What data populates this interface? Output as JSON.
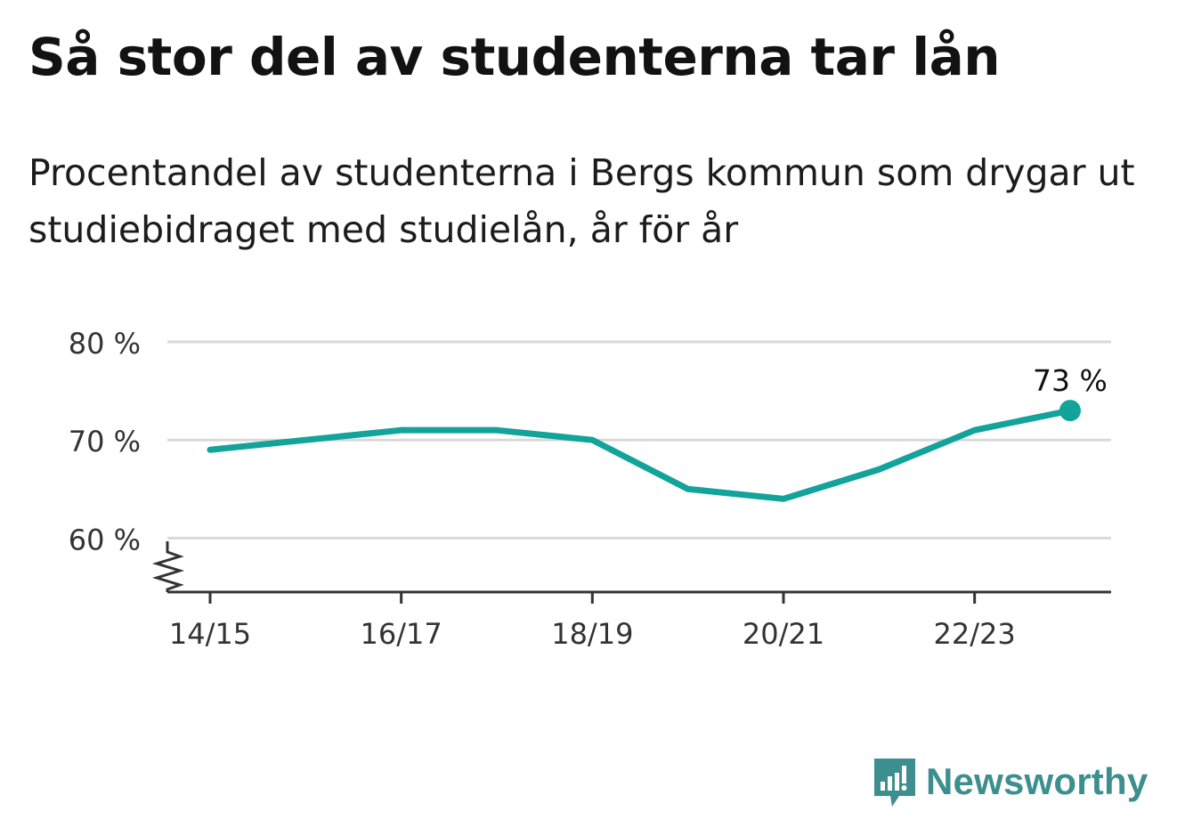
{
  "title": "Så stor del av studenterna tar lån",
  "subtitle": "Procentandel av studenterna i Bergs kommun som drygar ut studiebidraget med studielån, år för år",
  "brand": {
    "name": "Newsworthy",
    "color": "#3d8f8f"
  },
  "chart_data": {
    "type": "line",
    "categories": [
      "14/15",
      "15/16",
      "16/17",
      "17/18",
      "18/19",
      "19/20",
      "20/21",
      "21/22",
      "22/23",
      "23/24"
    ],
    "x_tick_labels": [
      "14/15",
      "16/17",
      "18/19",
      "20/21",
      "22/23"
    ],
    "series": [
      {
        "values": [
          69,
          70,
          71,
          71,
          70,
          65,
          64,
          67,
          71,
          73
        ],
        "color": "#12a39a"
      }
    ],
    "y_ticks": [
      {
        "value": 60,
        "label": "60 %"
      },
      {
        "value": 70,
        "label": "70 %"
      },
      {
        "value": 80,
        "label": "80 %"
      }
    ],
    "ylim": [
      54.5,
      80
    ],
    "y_axis_break": true,
    "grid": true,
    "end_label": "73 %",
    "xlabel": "",
    "ylabel": ""
  }
}
